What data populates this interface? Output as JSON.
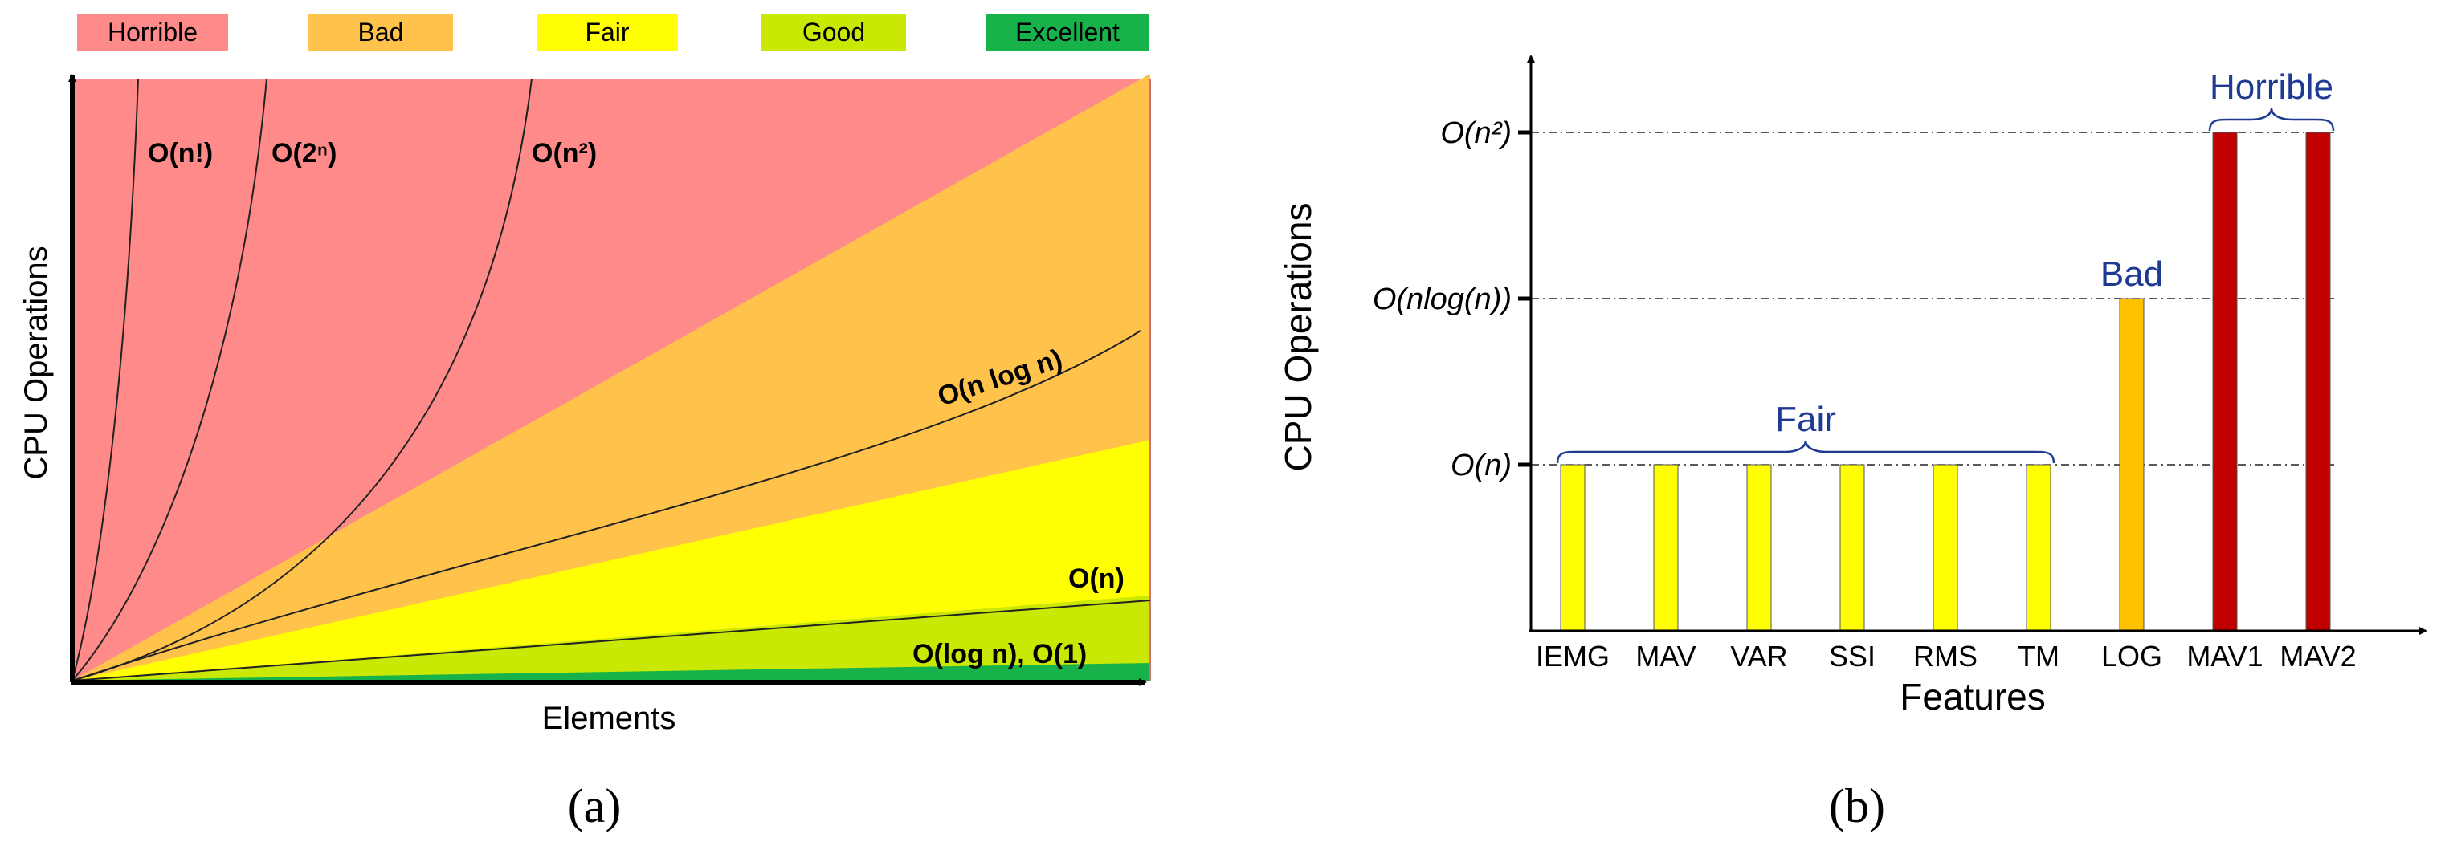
{
  "chart_data": [
    {
      "type": "area",
      "panel_label": "(a)",
      "legend": [
        {
          "label": "Horrible",
          "color": "#fe8b89"
        },
        {
          "label": "Bad",
          "color": "#ffc34c"
        },
        {
          "label": "Fair",
          "color": "#fffe03"
        },
        {
          "label": "Good",
          "color": "#c9e803"
        },
        {
          "label": "Excellent",
          "color": "#17b34a"
        }
      ],
      "xlabel": "Elements",
      "ylabel": "CPU Operations",
      "curves": [
        {
          "label": "O(n!)"
        },
        {
          "label": "O(2ⁿ)"
        },
        {
          "label": "O(n²)"
        },
        {
          "label": "O(n log n)"
        },
        {
          "label": "O(n)"
        },
        {
          "label": "O(log n), O(1)"
        }
      ]
    },
    {
      "type": "bar",
      "panel_label": "(b)",
      "xlabel": "Features",
      "ylabel": "CPU Operations",
      "categories": [
        "IEMG",
        "MAV",
        "VAR",
        "SSI",
        "RMS",
        "TM",
        "LOG",
        "MAV1",
        "MAV2"
      ],
      "values": [
        1,
        1,
        1,
        1,
        1,
        1,
        2,
        3,
        3
      ],
      "bar_colors": [
        "#fffe03",
        "#fffe03",
        "#fffe03",
        "#fffe03",
        "#fffe03",
        "#fffe03",
        "#ffc000",
        "#c00000",
        "#c00000"
      ],
      "ylim": [
        0,
        3.4
      ],
      "y_ticks": [
        {
          "value": 1,
          "label": "O(n)"
        },
        {
          "value": 2,
          "label": "O(nlog(n))"
        },
        {
          "value": 3,
          "label": "O(n²)"
        }
      ],
      "groups": [
        {
          "label": "Fair",
          "from": 0,
          "to": 5
        },
        {
          "label": "Bad",
          "from": 6,
          "to": 6
        },
        {
          "label": "Horrible",
          "from": 7,
          "to": 8
        }
      ]
    }
  ]
}
